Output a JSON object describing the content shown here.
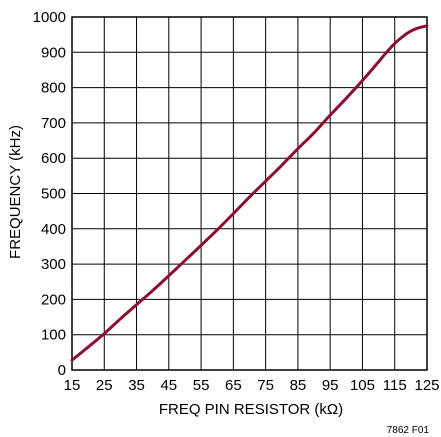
{
  "chart_data": {
    "type": "line",
    "title": "",
    "xlabel": "FREQ PIN RESISTOR (kΩ)",
    "ylabel": "FREQUENCY (kHz)",
    "xlim": [
      15,
      125
    ],
    "ylim": [
      0,
      1000
    ],
    "xticks": [
      "15",
      "25",
      "35",
      "45",
      "55",
      "65",
      "75",
      "85",
      "95",
      "105",
      "115",
      "125"
    ],
    "yticks": [
      "0",
      "100",
      "200",
      "300",
      "400",
      "500",
      "600",
      "700",
      "800",
      "900",
      "1000"
    ],
    "grid": true,
    "line_color": "#8b1030",
    "series": [
      {
        "x": [
          15,
          20,
          25,
          30,
          35,
          40,
          45,
          50,
          55,
          60,
          65,
          70,
          75,
          80,
          85,
          90,
          95,
          100,
          105,
          110,
          112,
          115,
          118,
          120,
          122,
          125
        ],
        "values": [
          28,
          65,
          103,
          145,
          185,
          225,
          267,
          310,
          353,
          397,
          443,
          490,
          535,
          580,
          627,
          672,
          722,
          770,
          820,
          873,
          895,
          925,
          948,
          960,
          968,
          975
        ]
      }
    ]
  },
  "figure_id": "7862 F01"
}
